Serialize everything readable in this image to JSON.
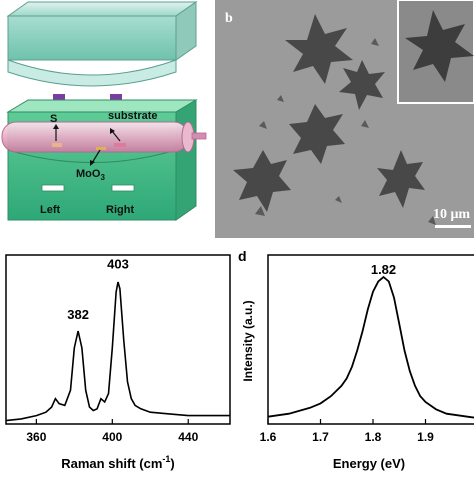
{
  "panel_a": {
    "labels": {
      "sulfur": "S",
      "substrate": "substrate",
      "moo3_main": "MoO",
      "moo3_sub": "3",
      "left": "Left",
      "right": "Right"
    }
  },
  "panel_b": {
    "letter": "b",
    "scale_bar": "10 μm"
  },
  "chart_data": [
    {
      "type": "line",
      "panel": "c",
      "title": "",
      "xlabel_main": "Raman shift (cm",
      "xlabel_sup": "-1",
      "xlabel_tail": ")",
      "ylabel": "",
      "xlim": [
        344,
        462
      ],
      "ylim": [
        0,
        1
      ],
      "xticks": [
        360,
        400,
        440
      ],
      "annotations": [
        {
          "text": "382",
          "x": 382,
          "y": 0.62
        },
        {
          "text": "403",
          "x": 403,
          "y": 0.92
        }
      ],
      "series": [
        {
          "x": [
            344,
            352,
            360,
            365,
            368,
            370,
            372,
            375,
            378,
            380,
            382,
            384,
            386,
            388,
            390,
            392,
            394,
            396,
            398,
            400,
            402,
            403,
            404,
            406,
            408,
            410,
            412,
            415,
            420,
            430,
            440,
            450,
            462
          ],
          "y": [
            0.02,
            0.03,
            0.05,
            0.07,
            0.1,
            0.15,
            0.12,
            0.11,
            0.2,
            0.45,
            0.55,
            0.45,
            0.2,
            0.1,
            0.08,
            0.09,
            0.15,
            0.13,
            0.18,
            0.45,
            0.78,
            0.84,
            0.8,
            0.5,
            0.25,
            0.15,
            0.11,
            0.09,
            0.07,
            0.06,
            0.05,
            0.05,
            0.05
          ]
        }
      ]
    },
    {
      "type": "line",
      "panel": "d",
      "letter": "d",
      "title": "",
      "xlabel": "Energy (eV)",
      "ylabel": "Intensity (a.u.)",
      "xlim": [
        1.6,
        2.0
      ],
      "ylim": [
        0,
        1.15
      ],
      "xticks": [
        1.6,
        1.7,
        1.8,
        1.9
      ],
      "xtick_labels": [
        "1.6",
        "1.7",
        "1.8",
        "1.9"
      ],
      "annotations": [
        {
          "text": "1.82",
          "x": 1.82,
          "y": 1.02
        }
      ],
      "series": [
        {
          "x": [
            1.6,
            1.62,
            1.64,
            1.66,
            1.68,
            1.7,
            1.72,
            1.74,
            1.75,
            1.76,
            1.77,
            1.78,
            1.79,
            1.8,
            1.81,
            1.82,
            1.83,
            1.84,
            1.85,
            1.86,
            1.87,
            1.88,
            1.89,
            1.9,
            1.92,
            1.94,
            1.96,
            1.98,
            2.0
          ],
          "y": [
            0.05,
            0.06,
            0.07,
            0.09,
            0.11,
            0.14,
            0.19,
            0.26,
            0.31,
            0.39,
            0.5,
            0.63,
            0.78,
            0.9,
            0.97,
            1.0,
            0.97,
            0.86,
            0.68,
            0.5,
            0.36,
            0.26,
            0.19,
            0.15,
            0.1,
            0.07,
            0.06,
            0.05,
            0.04
          ]
        }
      ]
    }
  ]
}
